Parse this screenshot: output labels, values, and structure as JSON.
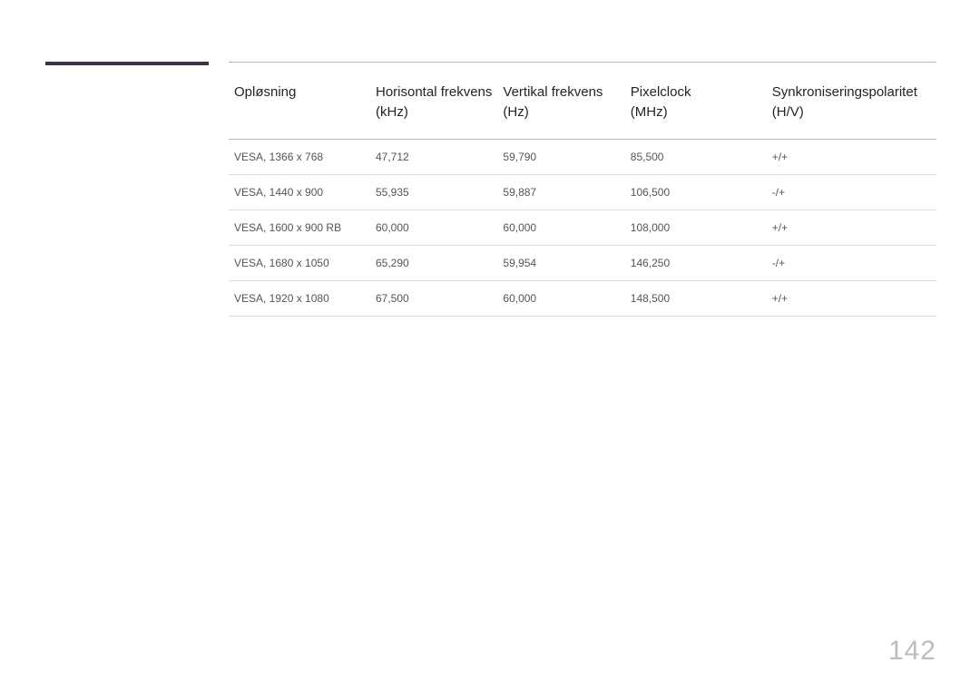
{
  "accent_color": "#3d3246",
  "page_number": "142",
  "table": {
    "columns": [
      {
        "line1": "Opløsning",
        "line2": ""
      },
      {
        "line1": "Horisontal frekvens",
        "line2": "(kHz)"
      },
      {
        "line1": "Vertikal frekvens",
        "line2": "(Hz)"
      },
      {
        "line1": "Pixelclock",
        "line2": "(MHz)"
      },
      {
        "line1": "Synkroniseringspolaritet",
        "line2": "(H/V)"
      }
    ],
    "rows": [
      [
        "VESA, 1366 x 768",
        "47,712",
        "59,790",
        "85,500",
        "+/+"
      ],
      [
        "VESA, 1440 x 900",
        "55,935",
        "59,887",
        "106,500",
        "-/+"
      ],
      [
        "VESA, 1600 x 900 RB",
        "60,000",
        "60,000",
        "108,000",
        "+/+"
      ],
      [
        "VESA, 1680 x 1050",
        "65,290",
        "59,954",
        "146,250",
        "-/+"
      ],
      [
        "VESA, 1920 x 1080",
        "67,500",
        "60,000",
        "148,500",
        "+/+"
      ]
    ]
  }
}
